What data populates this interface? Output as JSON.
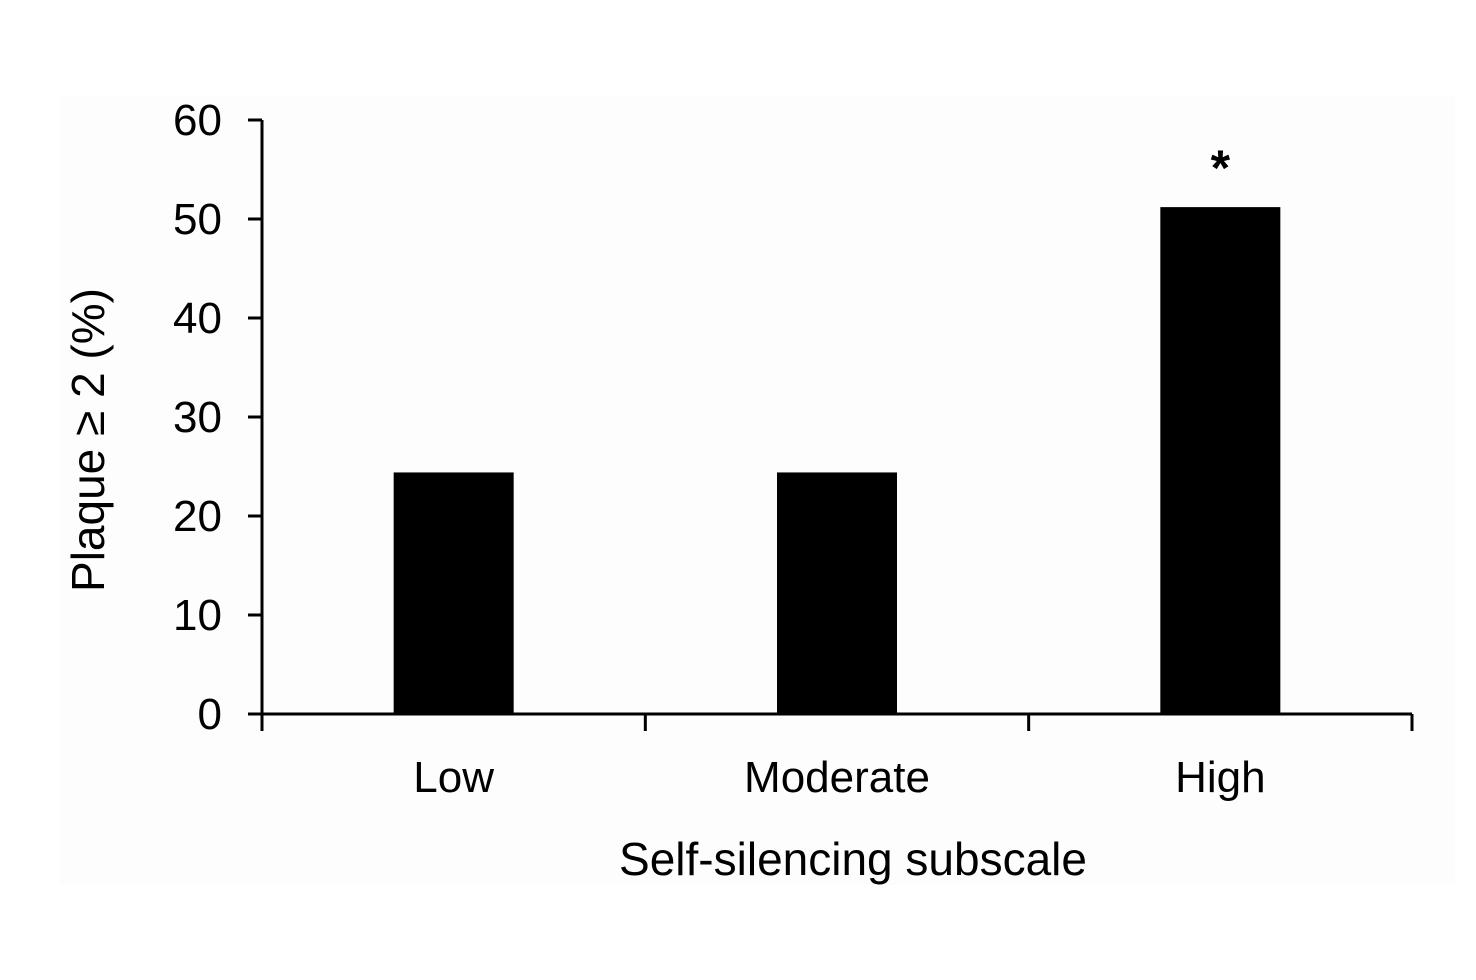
{
  "chart_data": {
    "type": "bar",
    "title": "",
    "xlabel": "Self-silencing subscale",
    "ylabel": "Plaque ≥ 2 (%)",
    "categories": [
      "Low",
      "Moderate",
      "High"
    ],
    "values": [
      24.4,
      24.4,
      51.2
    ],
    "annotations": [
      "",
      "",
      "*"
    ],
    "ylim": [
      0,
      60
    ],
    "yticks": [
      0,
      10,
      20,
      30,
      40,
      50,
      60
    ],
    "ytick_labels": [
      "0",
      "10",
      "20",
      "30",
      "40",
      "50",
      "60"
    ],
    "grid": false,
    "legend": "none",
    "colors": {
      "bar": "#000000",
      "axis": "#000000",
      "plot_background": "#fdfdfd"
    }
  }
}
